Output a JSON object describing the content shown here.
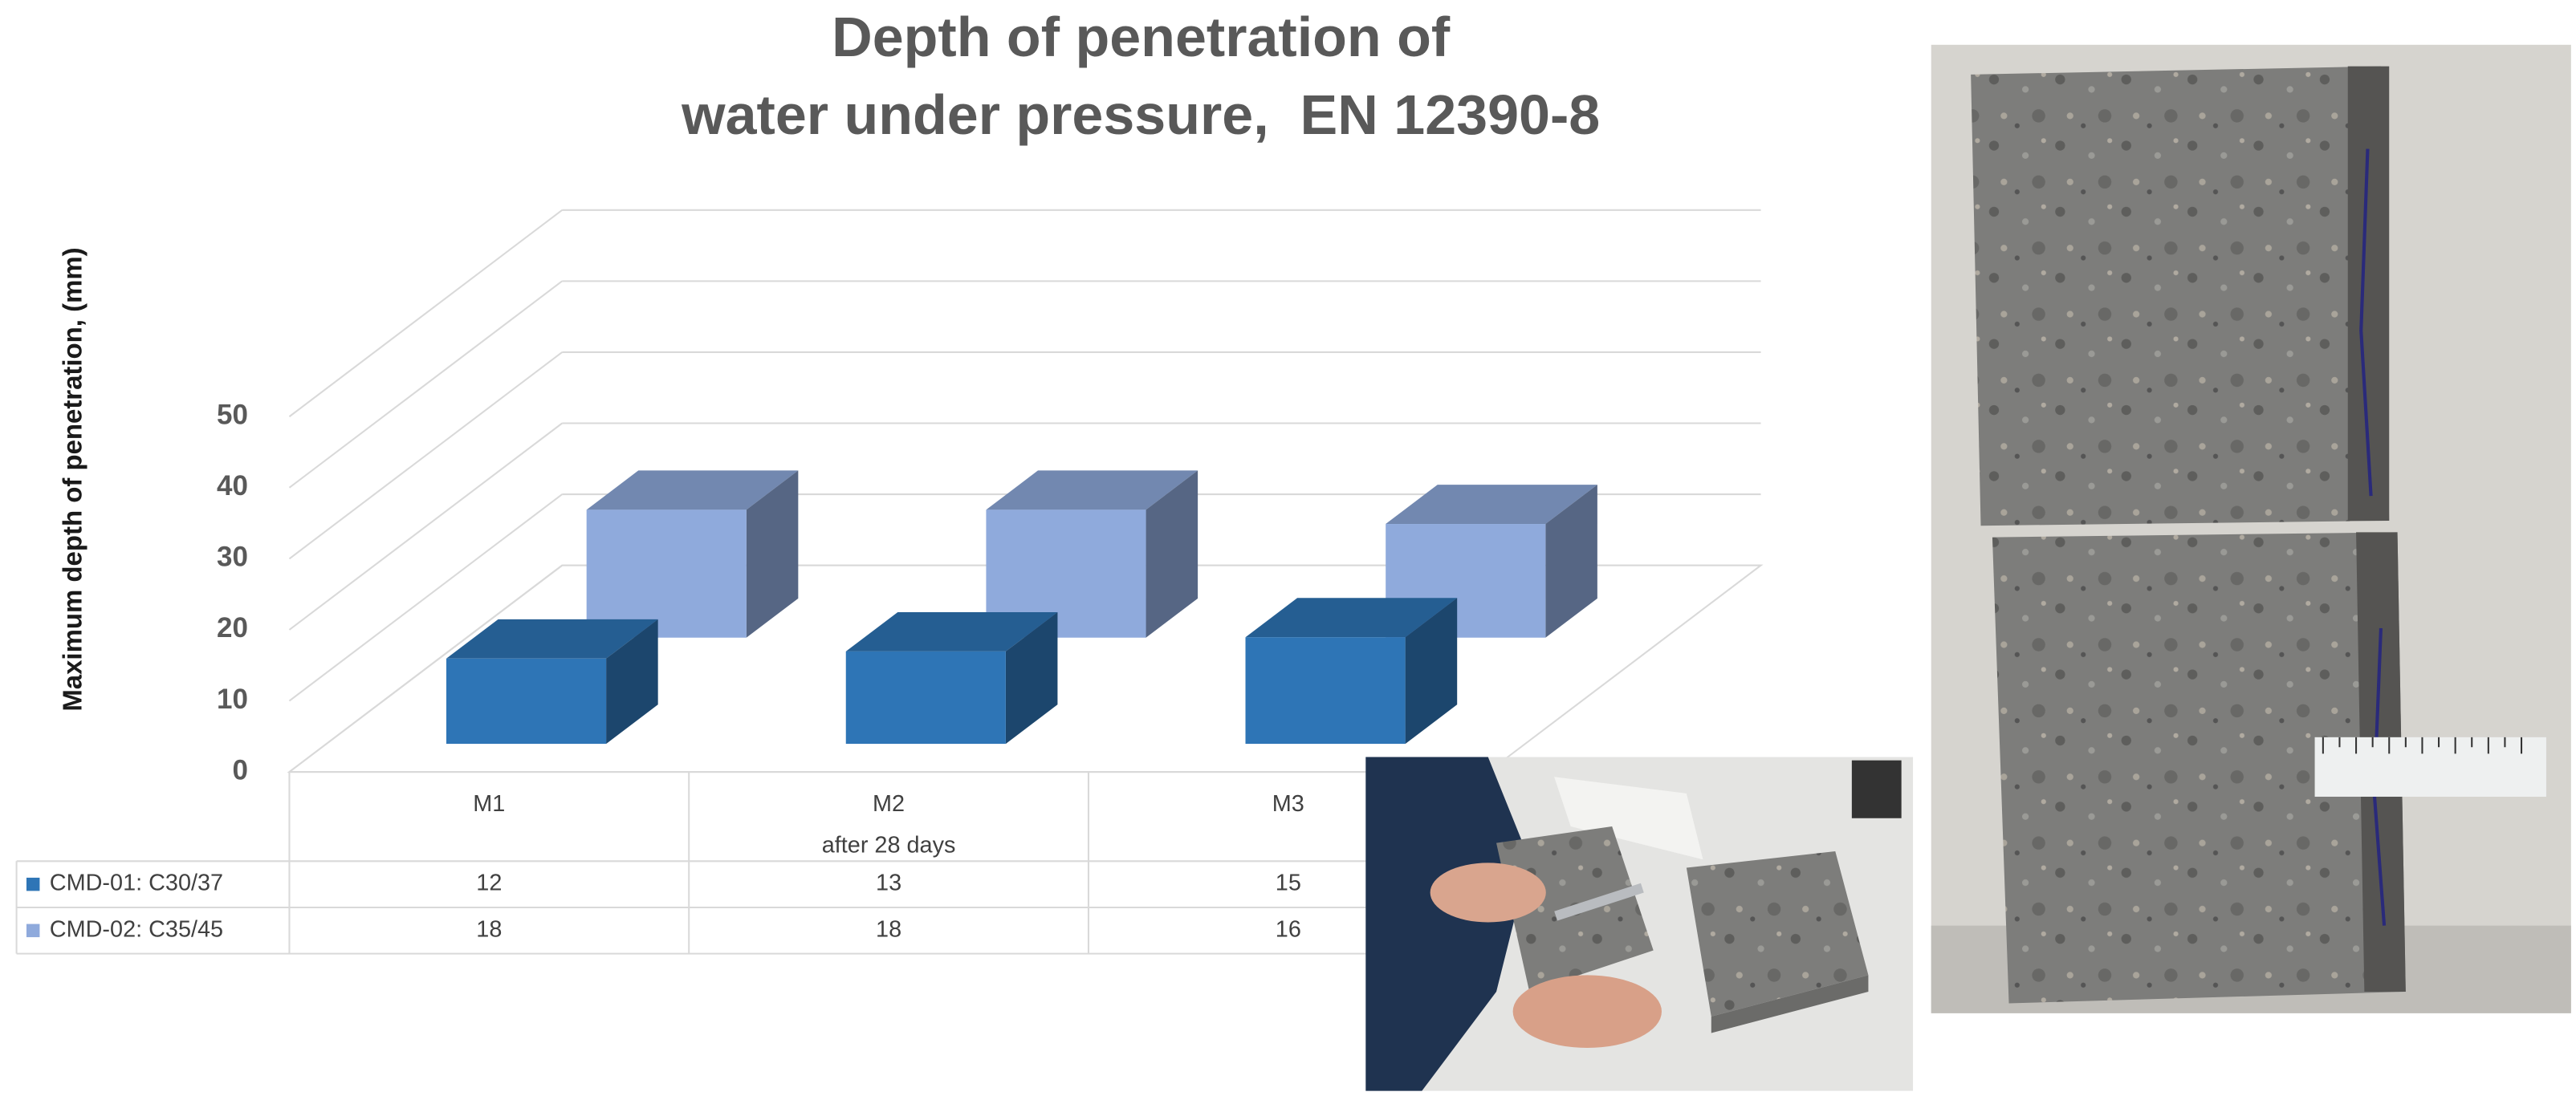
{
  "chart_data": {
    "type": "bar3d",
    "title": [
      "Depth of penetration of",
      "water under pressure,  EN 12390-8"
    ],
    "y_label": "Maximum depth of penetration, (mm)",
    "x_label": "after 28 days",
    "categories": [
      "M1",
      "M2",
      "M3"
    ],
    "series": [
      {
        "name": "CMD-01: C30/37",
        "color": "#2e75b6",
        "values": [
          12,
          13,
          15
        ]
      },
      {
        "name": "CMD-02: C35/45",
        "color": "#8faadc",
        "values": [
          18,
          18,
          16
        ]
      }
    ],
    "ylim": [
      0,
      50
    ],
    "yticks": [
      0,
      10,
      20,
      30,
      40,
      50
    ],
    "grid": true,
    "data_table": true
  }
}
